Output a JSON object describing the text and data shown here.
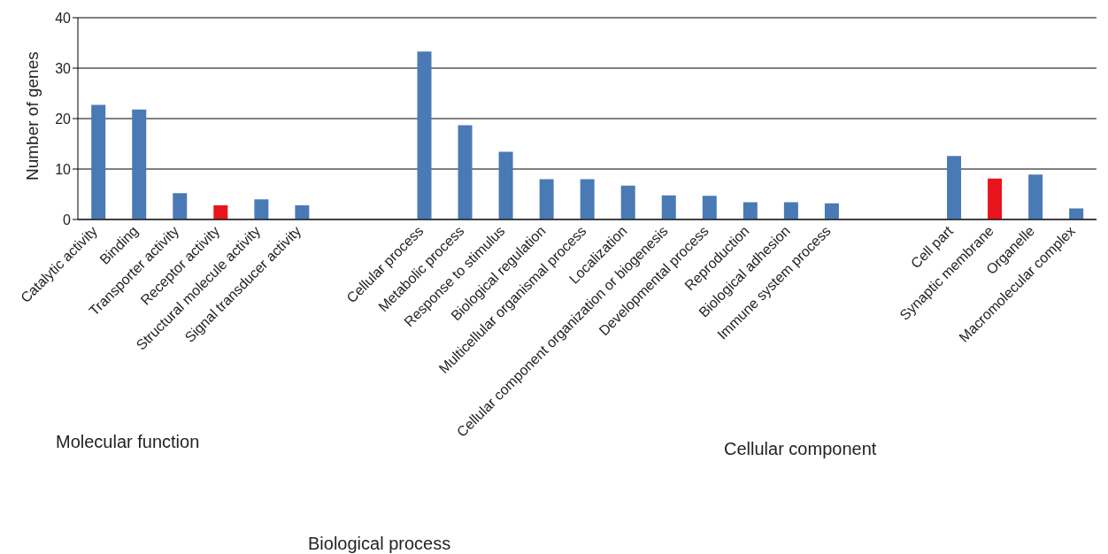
{
  "chart_data": {
    "type": "bar",
    "ylabel": "Number of genes",
    "categories": [
      "Catalytic activity",
      "Binding",
      "Transporter activity",
      "Receptor activity",
      "Structural molecule activity",
      "Signal transducer activity",
      null,
      null,
      "Cellular process",
      "Metabolic process",
      "Response to stimulus",
      "Biological regulation",
      "Multicellular organismal process",
      "Localization",
      "Cellular component organization or biogenesis",
      "Developmental process",
      "Reproduction",
      "Biological adhesion",
      "Immune system process",
      null,
      null,
      "Cell part",
      "Synaptic  membrane",
      "Organelle",
      "Macromolecular complex"
    ],
    "values": [
      22.7,
      21.8,
      5.2,
      2.8,
      4,
      2.8,
      null,
      null,
      33.3,
      18.7,
      13.4,
      8,
      8,
      6.7,
      4.8,
      4.7,
      3.4,
      3.4,
      3.2,
      null,
      null,
      12.6,
      8.1,
      8.9,
      2.2
    ],
    "colors": [
      "#4a7ab5",
      "#4a7ab5",
      "#4a7ab5",
      "#e8141c",
      "#4a7ab5",
      "#4a7ab5",
      null,
      null,
      "#4a7ab5",
      "#4a7ab5",
      "#4a7ab5",
      "#4a7ab5",
      "#4a7ab5",
      "#4a7ab5",
      "#4a7ab5",
      "#4a7ab5",
      "#4a7ab5",
      "#4a7ab5",
      "#4a7ab5",
      null,
      null,
      "#4a7ab5",
      "#e8141c",
      "#4a7ab5",
      "#4a7ab5"
    ],
    "ylim": [
      0,
      40
    ],
    "yticks": [
      0,
      10,
      20,
      30,
      40
    ],
    "grid": "y",
    "annotations": [
      "Molecular function",
      "Biological process",
      "Cellular component"
    ]
  }
}
